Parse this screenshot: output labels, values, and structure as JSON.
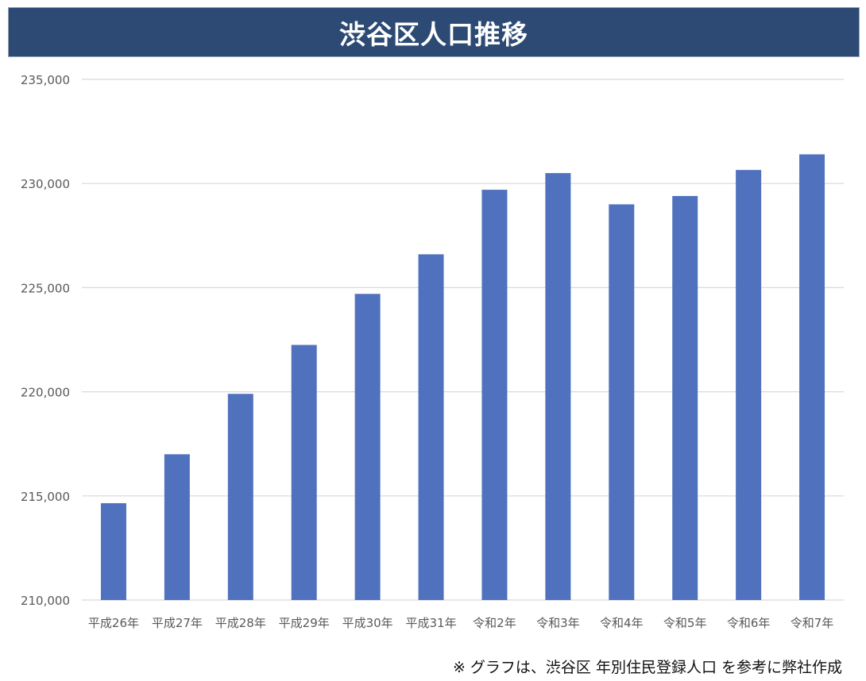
{
  "title": "渋谷区人口推移",
  "footnote": "※ グラフは、渋谷区 年別住民登録人口 を参考に弊社作成",
  "colors": {
    "title_bg": "#2c4a74",
    "bar": "#5072be",
    "grid": "#d9d9d9",
    "axis_text": "#595959"
  },
  "chart_data": {
    "type": "bar",
    "title": "渋谷区人口推移",
    "xlabel": "",
    "ylabel": "",
    "categories": [
      "平成26年",
      "平成27年",
      "平成28年",
      "平成29年",
      "平成30年",
      "平成31年",
      "令和2年",
      "令和3年",
      "令和4年",
      "令和5年",
      "令和6年",
      "令和7年"
    ],
    "values": [
      214650,
      217000,
      219900,
      222250,
      224700,
      226600,
      229700,
      230500,
      229000,
      229400,
      230650,
      231400
    ],
    "ylim": [
      210000,
      235000
    ],
    "yticks": [
      210000,
      215000,
      220000,
      225000,
      230000,
      235000
    ],
    "ytick_labels": [
      "210,000",
      "215,000",
      "220,000",
      "225,000",
      "230,000",
      "235,000"
    ],
    "grid": true,
    "legend": "none"
  }
}
